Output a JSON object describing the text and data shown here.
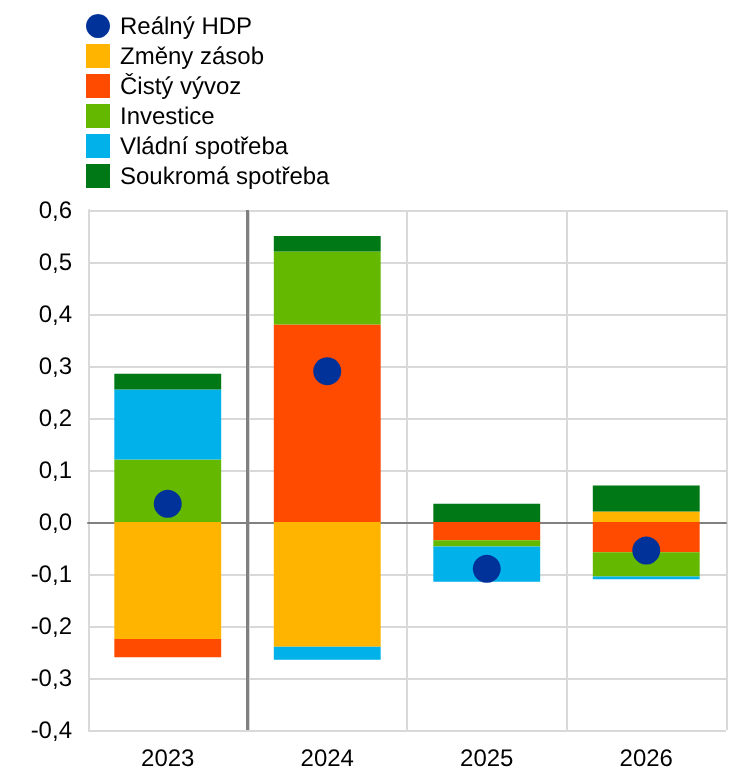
{
  "chart_data": {
    "type": "bar",
    "stacked": true,
    "categories": [
      "2023",
      "2024",
      "2025",
      "2026"
    ],
    "series": [
      {
        "name": "Reálný HDP",
        "type": "scatter",
        "color": "#003299",
        "values": [
          0.035,
          0.29,
          -0.09,
          -0.055
        ]
      },
      {
        "name": "Změny zásob",
        "color": "#ffb400",
        "values": [
          -0.225,
          -0.24,
          0,
          0.02
        ]
      },
      {
        "name": "Čistý vývoz",
        "color": "#ff4b00",
        "values": [
          -0.035,
          0.38,
          -0.035,
          -0.058
        ]
      },
      {
        "name": "Investice",
        "color": "#65b800",
        "values": [
          0.12,
          0.14,
          -0.012,
          -0.047
        ]
      },
      {
        "name": "Vládní spotřeba",
        "color": "#00b1ea",
        "values": [
          0.135,
          -0.025,
          -0.068,
          -0.005
        ]
      },
      {
        "name": "Soukromá spotřeba",
        "color": "#007816",
        "values": [
          0.03,
          0.03,
          0.035,
          0.05
        ]
      }
    ],
    "ylim": [
      -0.4,
      0.6
    ],
    "yticks": [
      {
        "value": -0.4,
        "label": "-0,4"
      },
      {
        "value": -0.3,
        "label": "-0,3"
      },
      {
        "value": -0.2,
        "label": "-0,2"
      },
      {
        "value": -0.1,
        "label": "-0,1"
      },
      {
        "value": 0,
        "label": "0,0"
      },
      {
        "value": 0.1,
        "label": "0,1"
      },
      {
        "value": 0.2,
        "label": "0,2"
      },
      {
        "value": 0.3,
        "label": "0,3"
      },
      {
        "value": 0.4,
        "label": "0,4"
      },
      {
        "value": 0.5,
        "label": "0,5"
      },
      {
        "value": 0.6,
        "label": "0,6"
      }
    ],
    "grid": true,
    "legend": "top left",
    "marker": "circle",
    "ref_lines": [
      {
        "axis": "x",
        "value": "2024",
        "color": "#808080"
      }
    ]
  }
}
